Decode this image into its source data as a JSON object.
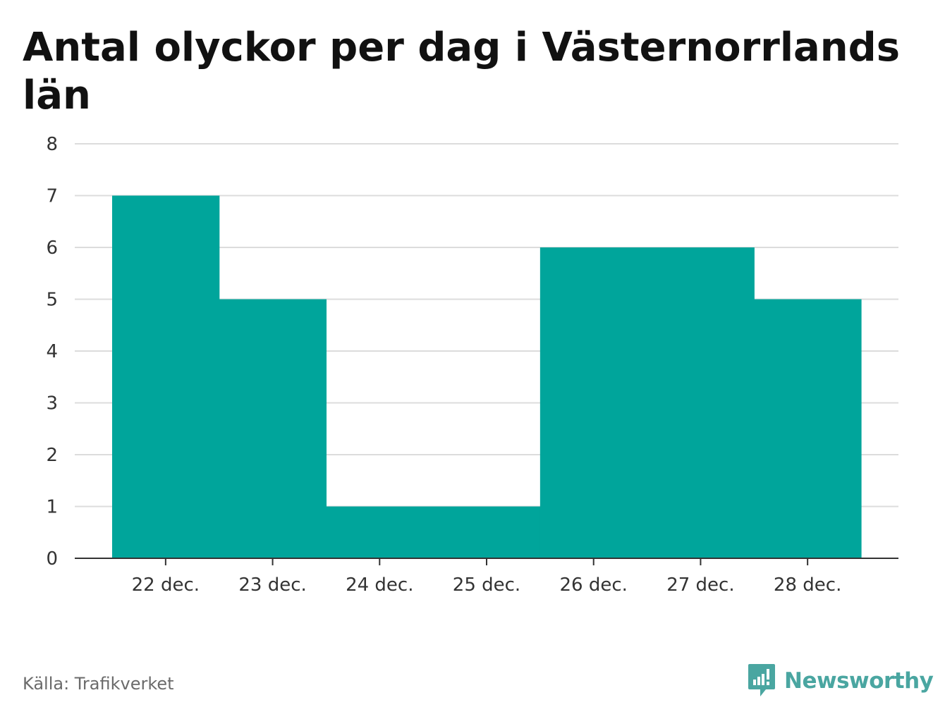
{
  "chart_data": {
    "type": "bar",
    "title": "Antal olyckor per dag i Västernorrlands län",
    "categories": [
      "22 dec.",
      "23 dec.",
      "24 dec.",
      "25 dec.",
      "26 dec.",
      "27 dec.",
      "28 dec."
    ],
    "values": [
      7,
      5,
      1,
      1,
      6,
      6,
      5
    ],
    "xlabel": "",
    "ylabel": "",
    "ylim": [
      0,
      8
    ],
    "yticks": [
      0,
      1,
      2,
      3,
      4,
      5,
      6,
      7,
      8
    ],
    "grid": true,
    "legend": "none",
    "bar_color": "#00a59b"
  },
  "footer": {
    "source": "Källa: Trafikverket",
    "brand": "Newsworthy",
    "brand_color": "#4aa6a1",
    "brand_icon": "bar-chart-speech-bubble-icon"
  }
}
